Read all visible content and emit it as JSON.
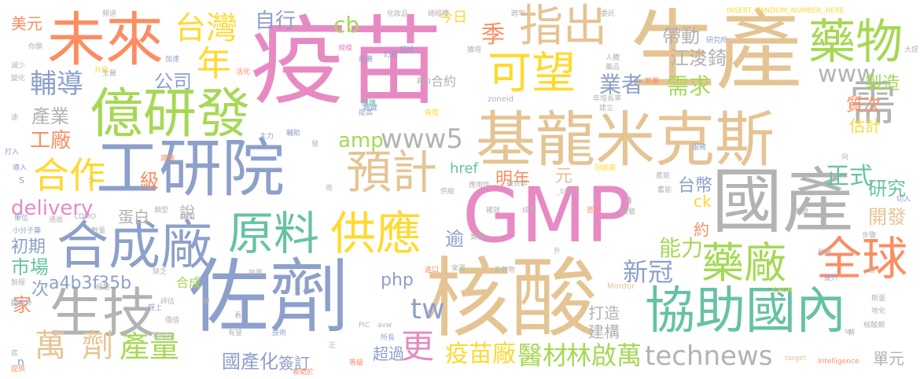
{
  "words": [
    {
      "text": "疫苗",
      "color": "#e78ac3"
    },
    {
      "text": "GMP",
      "color": "#e78ac3"
    },
    {
      "text": "生產",
      "color": "#e5c494"
    },
    {
      "text": "核酸",
      "color": "#e5c494"
    },
    {
      "text": "佐劑",
      "color": "#8da0cb"
    },
    {
      "text": "工研院",
      "color": "#8da0cb"
    },
    {
      "text": "國產",
      "color": "#b3b3b3"
    },
    {
      "text": "基龍米克斯",
      "color": "#e5c494"
    },
    {
      "text": "未來",
      "color": "#fc8d62"
    },
    {
      "text": "億研發",
      "color": "#a6d854"
    },
    {
      "text": "協助國內",
      "color": "#66c2a5"
    },
    {
      "text": "合成廠",
      "color": "#8da0cb"
    },
    {
      "text": "生技",
      "color": "#b3b3b3"
    },
    {
      "text": "藥物",
      "color": "#a6d854"
    },
    {
      "text": "原料",
      "color": "#66c2a5"
    },
    {
      "text": "供應",
      "color": "#ffd92f"
    },
    {
      "text": "預計",
      "color": "#e5c494"
    },
    {
      "text": "指出",
      "color": "#e5c494"
    },
    {
      "text": "可望",
      "color": "#ffd92f"
    },
    {
      "text": "全球",
      "color": "#fc8d62"
    },
    {
      "text": "藥廠",
      "color": "#a6d854"
    },
    {
      "text": "需",
      "color": "#b3b3b3"
    },
    {
      "text": "台灣",
      "color": "#ffd92f"
    },
    {
      "text": "合作",
      "color": "#ffd92f"
    },
    {
      "text": "technews",
      "color": "#b3b3b3"
    },
    {
      "text": "www5",
      "color": "#b3b3b3"
    },
    {
      "text": "www",
      "color": "#b3b3b3"
    },
    {
      "text": "輔導",
      "color": "#8da0cb"
    },
    {
      "text": "萬",
      "color": "#e5c494"
    },
    {
      "text": "劑",
      "color": "#e5c494"
    },
    {
      "text": "產量",
      "color": "#a6d854"
    },
    {
      "text": "醫材",
      "color": "#a6d854"
    },
    {
      "text": "林啟萬",
      "color": "#a6d854"
    },
    {
      "text": "疫苗廠",
      "color": "#ffd92f"
    },
    {
      "text": "更",
      "color": "#e78ac3"
    },
    {
      "text": "tw",
      "color": "#8da0cb"
    },
    {
      "text": "年",
      "color": "#ffd92f"
    },
    {
      "text": "季",
      "color": "#fc8d62"
    },
    {
      "text": "新冠",
      "color": "#8da0cb"
    },
    {
      "text": "能力",
      "color": "#a6d854"
    },
    {
      "text": "正式",
      "color": "#66c2a5"
    },
    {
      "text": "業者",
      "color": "#8da0cb"
    },
    {
      "text": "需求",
      "color": "#a6d854"
    },
    {
      "text": "帶動",
      "color": "#b3b3b3"
    },
    {
      "text": "江浚錡",
      "color": "#b3b3b3"
    },
    {
      "text": "工廠",
      "color": "#fc8d62"
    },
    {
      "text": "產業",
      "color": "#b3b3b3"
    },
    {
      "text": "公司",
      "color": "#8da0cb"
    },
    {
      "text": "自行",
      "color": "#8da0cb"
    },
    {
      "text": "cb",
      "color": "#a6d854"
    },
    {
      "text": "amp",
      "color": "#a6d854"
    },
    {
      "text": "delivery",
      "color": "#e78ac3"
    },
    {
      "text": "級",
      "color": "#fc8d62"
    },
    {
      "text": "明年",
      "color": "#fc8d62"
    },
    {
      "text": "台幣",
      "color": "#8da0cb"
    },
    {
      "text": "研究",
      "color": "#66c2a5"
    },
    {
      "text": "開發",
      "color": "#e5c494"
    },
    {
      "text": "php",
      "color": "#8da0cb"
    },
    {
      "text": "國產化",
      "color": "#8da0cb"
    },
    {
      "text": "市場",
      "color": "#66c2a5"
    },
    {
      "text": "初期",
      "color": "#8da0cb"
    },
    {
      "text": "家",
      "color": "#fc8d62"
    },
    {
      "text": "次",
      "color": "#8da0cb"
    },
    {
      "text": "a4b3f35b",
      "color": "#8da0cb"
    },
    {
      "text": "蛋白",
      "color": "#b3b3b3"
    },
    {
      "text": "說",
      "color": "#b3b3b3"
    },
    {
      "text": "逾",
      "color": "#8da0cb"
    },
    {
      "text": "單元",
      "color": "#b3b3b3"
    },
    {
      "text": "製造",
      "color": "#a6d854"
    },
    {
      "text": "質次",
      "color": "#fc8d62"
    },
    {
      "text": "估計",
      "color": "#ffd92f"
    },
    {
      "text": "打造",
      "color": "#b3b3b3"
    },
    {
      "text": "建構",
      "color": "#b3b3b3"
    },
    {
      "text": "元",
      "color": "#e5c494"
    },
    {
      "text": "超過",
      "color": "#8da0cb"
    },
    {
      "text": "簽訂",
      "color": "#8da0cb"
    },
    {
      "text": "約",
      "color": "#fc8d62"
    },
    {
      "text": "ck",
      "color": "#ffd92f"
    },
    {
      "text": "今日",
      "color": "#ffd92f"
    },
    {
      "text": "合約",
      "color": "#b3b3b3"
    },
    {
      "text": "href",
      "color": "#66c2a5"
    },
    {
      "text": "合成",
      "color": "#a6d854"
    },
    {
      "text": "美元",
      "color": "#fc8d62"
    },
    {
      "text": "INSERT_RANDOM_NUMBER_HERE",
      "color": "#ffd92f"
    },
    {
      "text": "a",
      "color": "#b3b3b3"
    },
    {
      "text": "zoneid",
      "color": "#b3b3b3"
    },
    {
      "text": "_blank",
      "color": "#b3b3b3"
    },
    {
      "text": "CDMO",
      "color": "#b3b3b3"
    },
    {
      "text": "Mordor",
      "color": "#e5c494"
    },
    {
      "text": "PIC",
      "color": "#b3b3b3"
    },
    {
      "text": "avw",
      "color": "#b3b3b3"
    },
    {
      "text": "CAGR",
      "color": "#ffd92f"
    },
    {
      "text": "target",
      "color": "#e5c494"
    },
    {
      "text": "Intelligence",
      "color": "#fc8d62"
    },
    {
      "text": "src",
      "color": "#b3b3b3"
    },
    {
      "text": "S",
      "color": "#8da0cb"
    },
    {
      "text": "n",
      "color": "#8da0cb"
    },
    {
      "text": "化妝品",
      "color": "#b3b3b3"
    },
    {
      "text": "總經理",
      "color": "#b3b3b3"
    },
    {
      "text": "研究所",
      "color": "#8da0cb"
    },
    {
      "text": "領域",
      "color": "#8da0cb"
    },
    {
      "text": "擴增",
      "color": "#b3b3b3"
    },
    {
      "text": "規模",
      "color": "#e78ac3"
    },
    {
      "text": "訂購",
      "color": "#8da0cb"
    },
    {
      "text": "設備",
      "color": "#8da0cb"
    },
    {
      "text": "升級",
      "color": "#ffd92f"
    },
    {
      "text": "生醫",
      "color": "#b3b3b3"
    },
    {
      "text": "加速",
      "color": "#8da0cb"
    },
    {
      "text": "活化",
      "color": "#fc8d62"
    },
    {
      "text": "提高",
      "color": "#8da0cb"
    },
    {
      "text": "關鍵",
      "color": "#8da0cb"
    },
    {
      "text": "採購",
      "color": "#66c2a5"
    },
    {
      "text": "負擔",
      "color": "#ffd92f"
    },
    {
      "text": "年增長率",
      "color": "#b3b3b3"
    },
    {
      "text": "建立",
      "color": "#b3b3b3"
    },
    {
      "text": "新藥",
      "color": "#fc8d62"
    },
    {
      "text": "人體",
      "color": "#b3b3b3"
    },
    {
      "text": "藥品",
      "color": "#b3b3b3"
    },
    {
      "text": "服務",
      "color": "#8da0cb"
    },
    {
      "text": "冠狀病",
      "color": "#ffd92f"
    },
    {
      "text": "產能",
      "color": "#b3b3b3"
    },
    {
      "text": "主力",
      "color": "#8da0cb"
    },
    {
      "text": "輔助",
      "color": "#8da0cb"
    },
    {
      "text": "建廠",
      "color": "#fc8d62"
    },
    {
      "text": "導入",
      "color": "#8da0cb"
    },
    {
      "text": "打入",
      "color": "#8da0cb"
    },
    {
      "text": "切入",
      "color": "#8da0cb"
    },
    {
      "text": "期間",
      "color": "#b3b3b3"
    },
    {
      "text": "微型",
      "color": "#b3b3b3"
    },
    {
      "text": "步驟",
      "color": "#b3b3b3"
    },
    {
      "text": "歐美",
      "color": "#b3b3b3"
    },
    {
      "text": "提升",
      "color": "#8da0cb"
    },
    {
      "text": "斯量",
      "color": "#b3b3b3"
    },
    {
      "text": "地化",
      "color": "#b3b3b3"
    },
    {
      "text": "核酸類",
      "color": "#b3b3b3"
    },
    {
      "text": "單位",
      "color": "#8da0cb"
    },
    {
      "text": "小分子藥",
      "color": "#8da0cb"
    },
    {
      "text": "數量",
      "color": "#b3b3b3"
    },
    {
      "text": "類型",
      "color": "#b3b3b3"
    },
    {
      "text": "通過",
      "color": "#b3b3b3"
    },
    {
      "text": "缺乏",
      "color": "#b3b3b3"
    },
    {
      "text": "效果",
      "color": "#b3b3b3"
    },
    {
      "text": "進口",
      "color": "#fc8d62"
    },
    {
      "text": "來源",
      "color": "#b3b3b3"
    },
    {
      "text": "天然物",
      "color": "#b3b3b3"
    },
    {
      "text": "價值",
      "color": "#b3b3b3"
    },
    {
      "text": "經驗",
      "color": "#b3b3b3"
    },
    {
      "text": "現階段",
      "color": "#b3b3b3"
    },
    {
      "text": "有望",
      "color": "#b3b3b3"
    },
    {
      "text": "技術",
      "color": "#8da0cb"
    },
    {
      "text": "所長",
      "color": "#8da0cb"
    },
    {
      "text": "等級",
      "color": "#fc8d62"
    },
    {
      "text": "有助於",
      "color": "#fc8d62"
    },
    {
      "text": "應用性",
      "color": "#b3b3b3"
    },
    {
      "text": "供給",
      "color": "#b3b3b3"
    },
    {
      "text": "複合年",
      "color": "#b3b3b3"
    },
    {
      "text": "確效",
      "color": "#b3b3b3"
    },
    {
      "text": "成本",
      "color": "#b3b3b3"
    },
    {
      "text": "實績",
      "color": "#b3b3b3"
    },
    {
      "text": "檢驗",
      "color": "#b3b3b3"
    },
    {
      "text": "首次",
      "color": "#fc8d62"
    },
    {
      "text": "蓄能",
      "color": "#b3b3b3"
    },
    {
      "text": "提供",
      "color": "#fc8d62"
    },
    {
      "text": "製程",
      "color": "#b3b3b3"
    },
    {
      "text": "國內外",
      "color": "#8da0cb"
    },
    {
      "text": "趕上",
      "color": "#8da0cb"
    },
    {
      "text": "評估",
      "color": "#b3b3b3"
    },
    {
      "text": "你願",
      "color": "#b3b3b3"
    },
    {
      "text": "跨年",
      "color": "#b3b3b3"
    },
    {
      "text": "委託",
      "color": "#b3b3b3"
    },
    {
      "text": "頻道",
      "color": "#b3b3b3"
    },
    {
      "text": "大提",
      "color": "#b3b3b3"
    },
    {
      "text": "藉由",
      "color": "#b3b3b3"
    },
    {
      "text": "減少",
      "color": "#b3b3b3"
    },
    {
      "text": "變化",
      "color": "#b3b3b3"
    },
    {
      "text": "專",
      "color": "#b3b3b3"
    },
    {
      "text": "少",
      "color": "#b3b3b3"
    },
    {
      "text": "正",
      "color": "#b3b3b3"
    },
    {
      "text": "途",
      "color": "#b3b3b3"
    },
    {
      "text": "底",
      "color": "#b3b3b3"
    },
    {
      "text": "雨",
      "color": "#b3b3b3"
    },
    {
      "text": "外",
      "color": "#b3b3b3"
    },
    {
      "text": "新",
      "color": "#b3b3b3"
    },
    {
      "text": "向",
      "color": "#b3b3b3"
    },
    {
      "text": "替",
      "color": "#b3b3b3"
    },
    {
      "text": "看",
      "color": "#b3b3b3"
    },
    {
      "text": "發",
      "color": "#b3b3b3"
    }
  ]
}
